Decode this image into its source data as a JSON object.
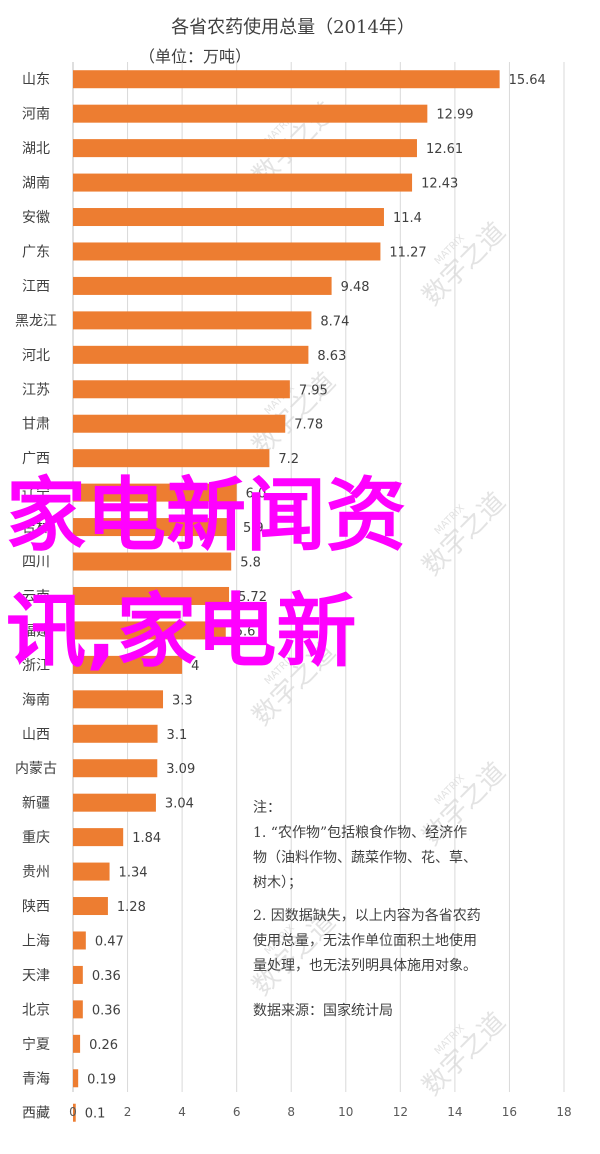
{
  "chart_data": {
    "type": "bar",
    "orientation": "horizontal",
    "title": "各省农药使用总量（2014年）",
    "subtitle": "（单位：万吨）",
    "categories": [
      "山东",
      "河南",
      "湖北",
      "湖南",
      "安徽",
      "广东",
      "江西",
      "黑龙江",
      "河北",
      "江苏",
      "甘肃",
      "广西",
      "辽宁",
      "吉林",
      "四川",
      "云南",
      "福建",
      "浙江",
      "海南",
      "山西",
      "内蒙古",
      "新疆",
      "重庆",
      "贵州",
      "陕西",
      "上海",
      "天津",
      "北京",
      "宁夏",
      "青海",
      "西藏"
    ],
    "values": [
      15.64,
      12.99,
      12.61,
      12.43,
      11.4,
      11.27,
      9.48,
      8.74,
      8.63,
      7.95,
      7.78,
      7.2,
      6.0,
      5.9,
      5.8,
      5.72,
      5.6,
      4.0,
      3.3,
      3.1,
      3.09,
      3.04,
      1.84,
      1.34,
      1.28,
      0.47,
      0.36,
      0.36,
      0.26,
      0.19,
      0.1
    ],
    "labels": [
      "15.64",
      "12.99",
      "12.61",
      "12.43",
      "11.4",
      "11.27",
      "9.48",
      "8.74",
      "8.63",
      "7.95",
      "7.78",
      "7.2",
      "6.0",
      "5.9",
      "5.8",
      "5.72",
      "5.6",
      "4",
      "3.3",
      "3.1",
      "3.09",
      "3.04",
      "1.84",
      "1.34",
      "1.28",
      "0.47",
      "0.36",
      "0.36",
      "0.26",
      "0.19",
      "0.1"
    ],
    "xlim": [
      0,
      18
    ],
    "xticks": [
      0,
      2,
      4,
      6,
      8,
      10,
      12,
      14,
      16,
      18
    ],
    "grid": true,
    "bar_color": "#ed7d31"
  },
  "notes": {
    "heading": "注：",
    "lines": [
      "1. “农作物”包括粮食作物、经济作",
      "物（油料作物、蔬菜作物、花、草、",
      "树木）；",
      "2. 因数据缺失，以上内容为各省农药",
      "使用总量，无法作单位面积土地使用",
      "量处理，也无法列明具体施用对象。"
    ],
    "source": "数据来源：国家统计局"
  },
  "watermark": {
    "text": "数字之道",
    "sub": "MATRIX"
  },
  "overlay": {
    "line1": "家电新闻资",
    "line2": "讯,家电新",
    "color": "#ff00ff"
  }
}
